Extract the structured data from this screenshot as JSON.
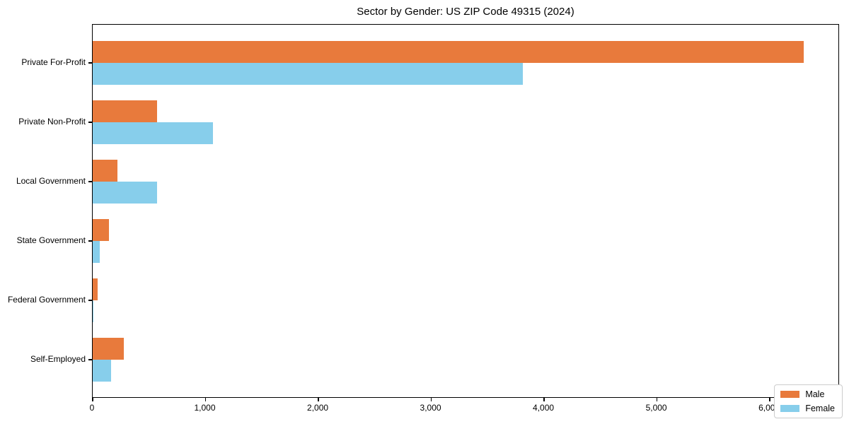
{
  "chart_data": {
    "type": "bar",
    "orientation": "horizontal",
    "title": "Sector by Gender: US ZIP Code 49315 (2024)",
    "categories": [
      "Private For-Profit",
      "Private Non-Profit",
      "Local Government",
      "State Government",
      "Federal Government",
      "Self-Employed"
    ],
    "series": [
      {
        "name": "Male",
        "color": "#E87A3C",
        "values": [
          6300,
          570,
          220,
          145,
          45,
          275
        ]
      },
      {
        "name": "Female",
        "color": "#87CEEB",
        "values": [
          3810,
          1065,
          570,
          65,
          8,
          160
        ]
      }
    ],
    "xlabel": "",
    "ylabel": "",
    "xlim": [
      0,
      6620
    ],
    "xticks": [
      0,
      1000,
      2000,
      3000,
      4000,
      5000,
      6000
    ],
    "xtick_labels": [
      "0",
      "1,000",
      "2,000",
      "3,000",
      "4,000",
      "5,000",
      "6,000"
    ],
    "grid": false,
    "legend_position": "lower right"
  }
}
